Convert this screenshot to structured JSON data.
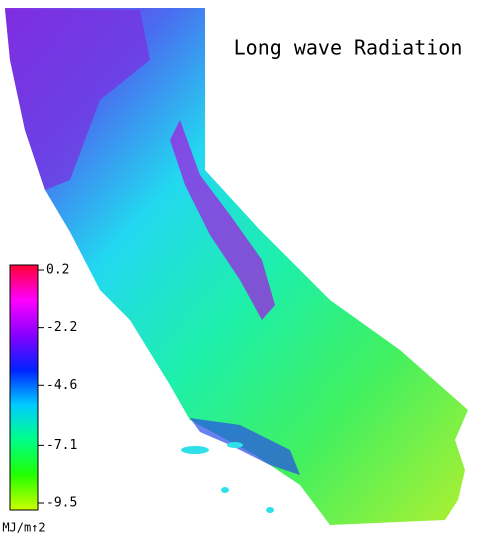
{
  "title": "Long wave Radiation",
  "colorbar": {
    "vlim": [
      -9.5,
      0.2
    ],
    "ticks": [
      0.2,
      -2.2,
      -4.6,
      -7.1,
      -9.5
    ],
    "unit": "MJ/m↑2",
    "colors": [
      "#ff0033",
      "#ff00ff",
      "#8800ff",
      "#0022ff",
      "#00ccff",
      "#00ff88",
      "#22ff00",
      "#ccff00"
    ]
  }
}
